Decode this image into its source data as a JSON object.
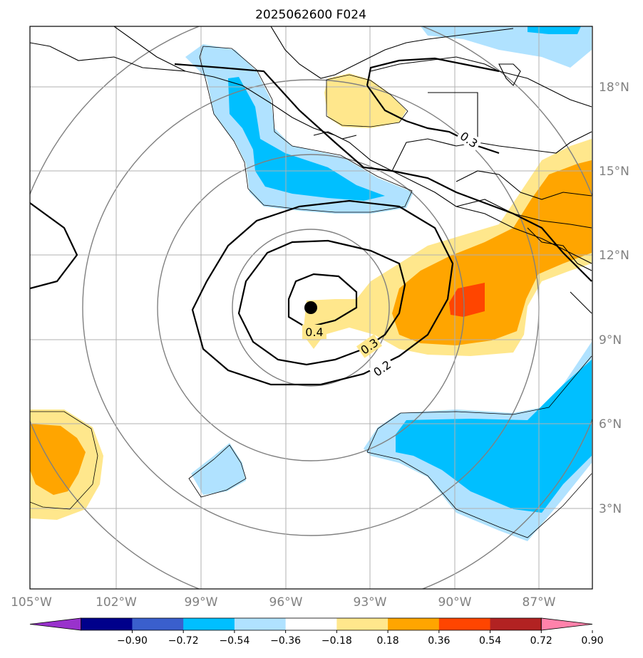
{
  "title": "2025062600 F024",
  "map": {
    "lon_labels": [
      "105°W",
      "102°W",
      "99°W",
      "96°W",
      "93°W",
      "90°W",
      "87°W"
    ],
    "lat_labels": [
      "18°N",
      "15°N",
      "12°N",
      "9°N",
      "6°N",
      "3°N"
    ],
    "center_marker": {
      "lon": -95.7,
      "lat": 10.1
    },
    "contour_labels": [
      "0.4",
      "0.3",
      "0.2",
      "0.3"
    ]
  },
  "colorbar": {
    "tick_labels": [
      "−0.90",
      "−0.72",
      "−0.54",
      "−0.36",
      "−0.18",
      "0.18",
      "0.36",
      "0.54",
      "0.72",
      "0.90"
    ],
    "colors": [
      "#9932cc",
      "#00008b",
      "#3a5fcd",
      "#00bfff",
      "#b0e2ff",
      "#ffffff",
      "#ffe78c",
      "#ffa500",
      "#ff4500",
      "#b22222",
      "#ff82ab"
    ]
  }
}
